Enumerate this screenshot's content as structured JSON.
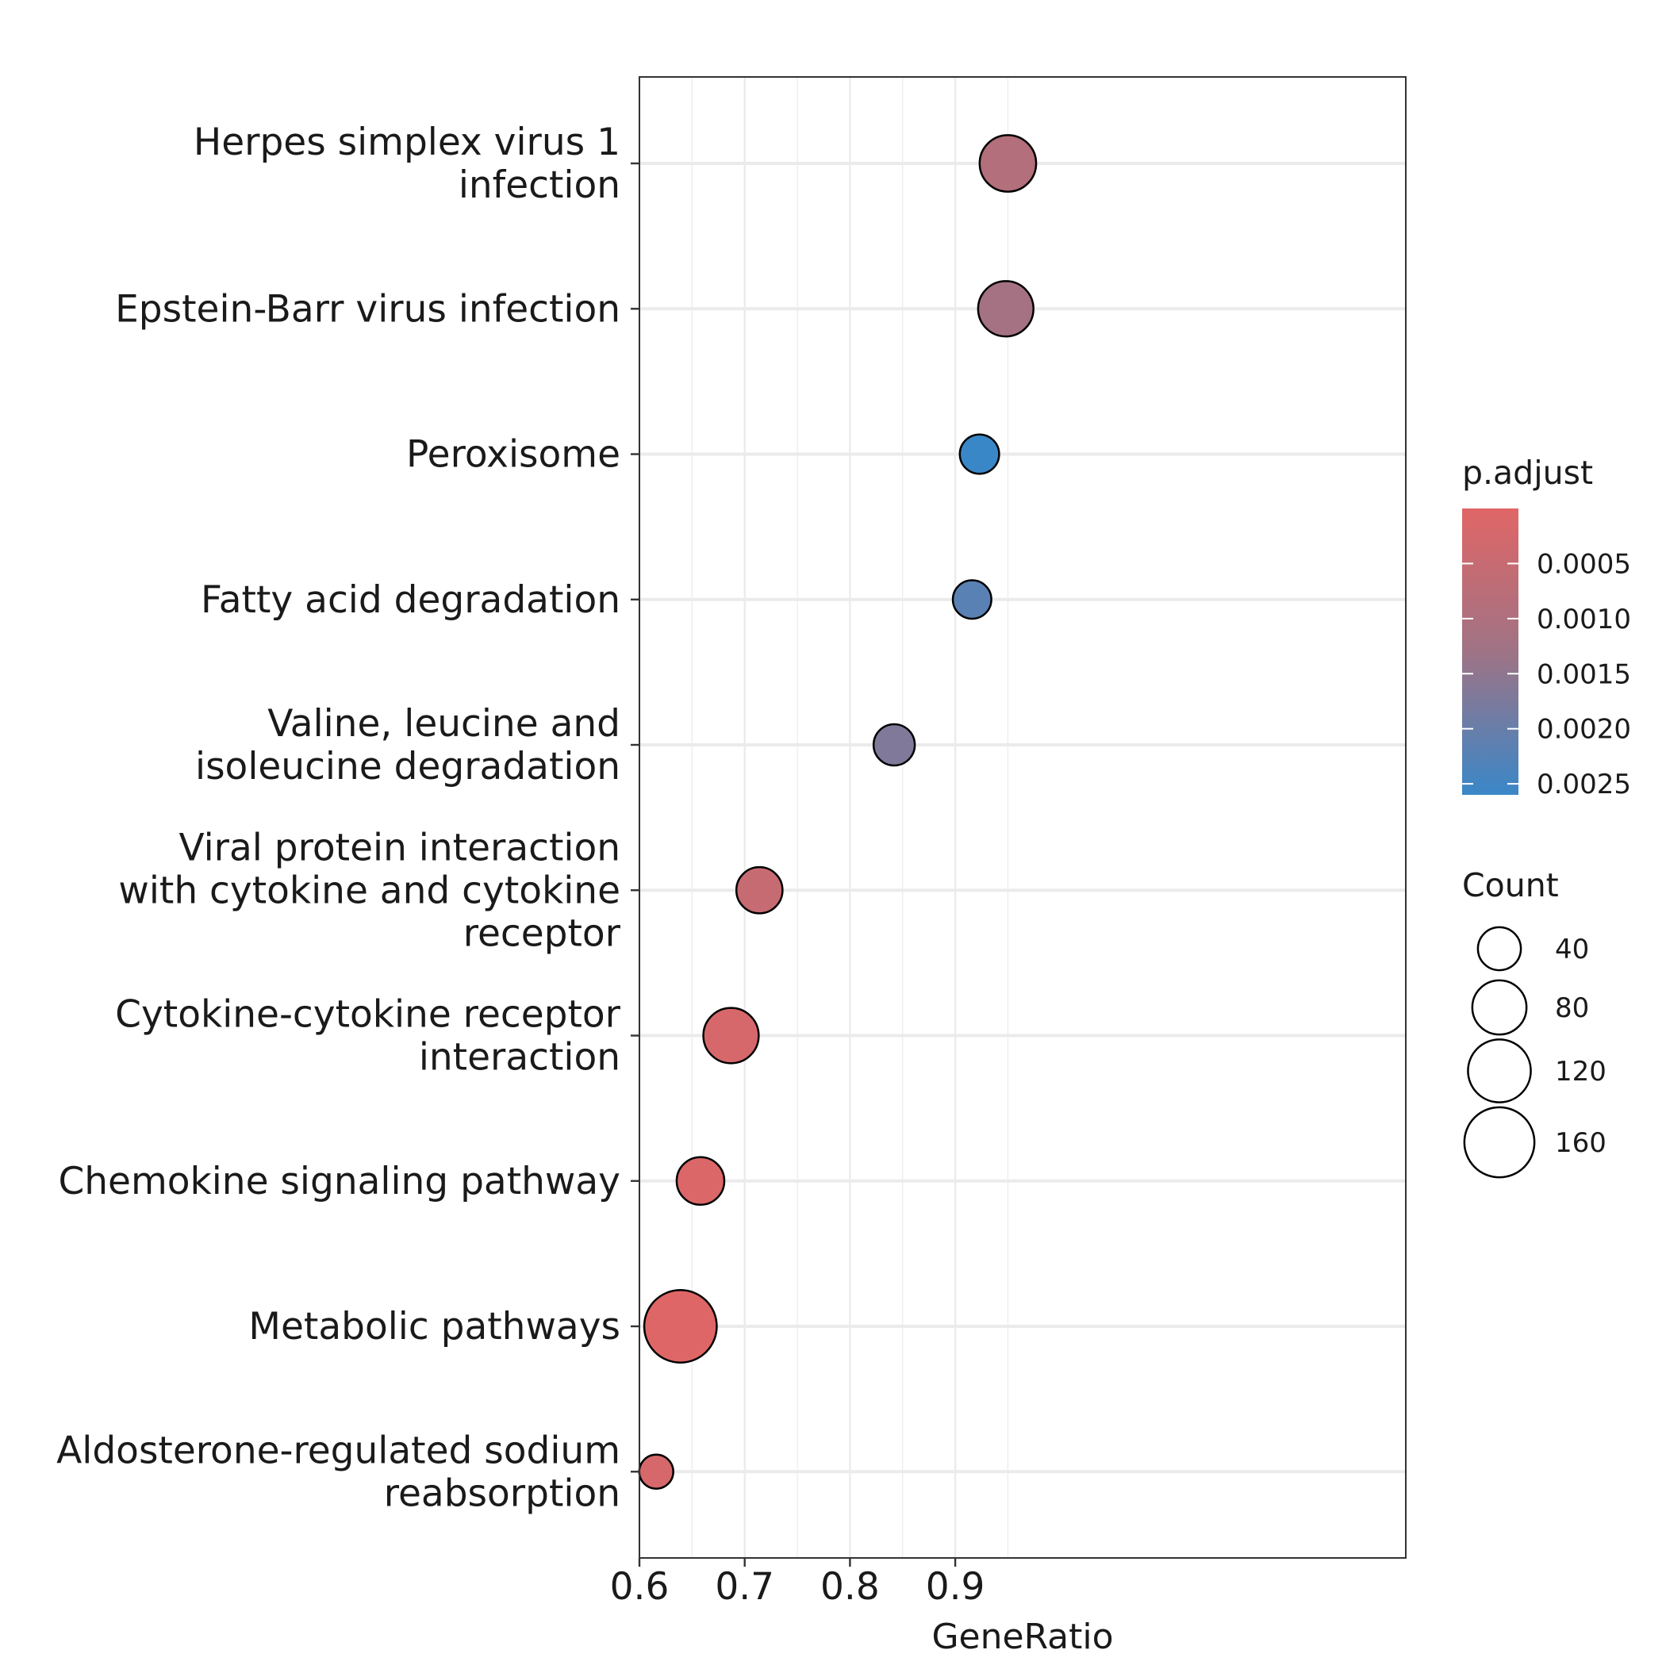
{
  "chart_data": {
    "type": "scatter",
    "xlabel": "GeneRatio",
    "ylabel": "",
    "xlim": [
      0.6,
      0.965
    ],
    "xticks": [
      0.6,
      0.7,
      0.8,
      0.9
    ],
    "xtick_labels": [
      "0.6",
      "0.7",
      "0.8",
      "0.9"
    ],
    "grid": true,
    "categories": [
      "Herpes simplex virus 1\ninfection",
      "Epstein-Barr virus infection",
      "Peroxisome",
      "Fatty acid degradation",
      "Valine, leucine and\nisoleucine degradation",
      "Viral protein interaction\nwith cytokine and cytokine\nreceptor",
      "Cytokine-cytokine receptor\ninteraction",
      "Chemokine signaling pathway",
      "Metabolic pathways",
      "Aldosterone-regulated sodium\nreabsorption"
    ],
    "points": [
      {
        "category": "Herpes simplex virus 1\ninfection",
        "x": 0.95,
        "count": 90,
        "p_adjust": 0.0009
      },
      {
        "category": "Epstein-Barr virus infection",
        "x": 0.948,
        "count": 85,
        "p_adjust": 0.0012
      },
      {
        "category": "Peroxisome",
        "x": 0.923,
        "count": 30,
        "p_adjust": 0.0026
      },
      {
        "category": "Fatty acid degradation",
        "x": 0.916,
        "count": 28,
        "p_adjust": 0.0022
      },
      {
        "category": "Valine, leucine and\nisoleucine degradation",
        "x": 0.842,
        "count": 35,
        "p_adjust": 0.0017
      },
      {
        "category": "Viral protein interaction\nwith cytokine and cytokine\nreceptor",
        "x": 0.714,
        "count": 50,
        "p_adjust": 0.0005
      },
      {
        "category": "Cytokine-cytokine receptor\ninteraction",
        "x": 0.687,
        "count": 85,
        "p_adjust": 0.0002
      },
      {
        "category": "Chemokine signaling pathway",
        "x": 0.658,
        "count": 55,
        "p_adjust": 0.0001
      },
      {
        "category": "Metabolic pathways",
        "x": 0.639,
        "count": 175,
        "p_adjust": 2e-05
      },
      {
        "category": "Aldosterone-regulated sodium\nreabsorption",
        "x": 0.616,
        "count": 18,
        "p_adjust": 0.0002
      }
    ],
    "color_legend": {
      "title": "p.adjust",
      "low_color": "#e06666",
      "mid_color": "#9f7385",
      "high_color": "#3a87c8",
      "range": [
        0.0,
        0.0026
      ],
      "ticks": [
        0.0005,
        0.001,
        0.0015,
        0.002,
        0.0025
      ],
      "tick_labels": [
        "0.0005",
        "0.0010",
        "0.0015",
        "0.0020",
        "0.0025"
      ]
    },
    "size_legend": {
      "title": "Count",
      "values": [
        40,
        80,
        120,
        160
      ],
      "labels": [
        "40",
        "80",
        "120",
        "160"
      ]
    },
    "legend_position": "right"
  }
}
